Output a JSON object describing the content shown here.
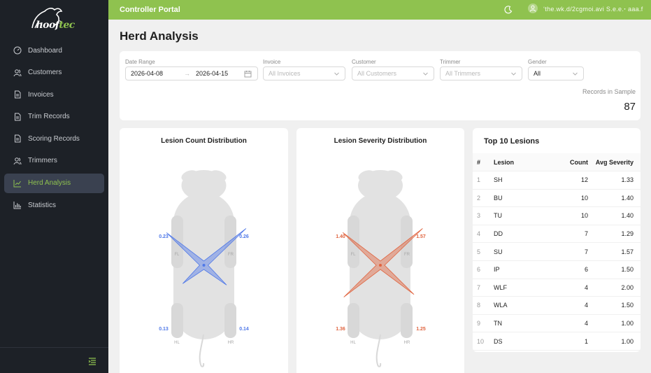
{
  "app": {
    "logo_text_main": "hoof",
    "logo_text_accent": "tec",
    "portal_title": "Controller Portal",
    "user_name": "ʻthe.wk.d/2cgmoi.avi  S.e.e.ꞏ aaa.f",
    "accent_color": "#8fc24f"
  },
  "sidebar": {
    "items": [
      {
        "label": "Dashboard",
        "icon": "dashboard-icon"
      },
      {
        "label": "Customers",
        "icon": "users-icon"
      },
      {
        "label": "Invoices",
        "icon": "file-icon"
      },
      {
        "label": "Trim Records",
        "icon": "file-icon"
      },
      {
        "label": "Scoring Records",
        "icon": "file-icon"
      },
      {
        "label": "Trimmers",
        "icon": "users-icon"
      },
      {
        "label": "Herd Analysis",
        "icon": "line-chart-icon"
      },
      {
        "label": "Statistics",
        "icon": "bar-chart-icon"
      }
    ],
    "active_index": 6
  },
  "page": {
    "title": "Herd Analysis"
  },
  "filters": {
    "date_range_label": "Date Range",
    "date_start": "2026-04-08",
    "date_end": "2026-04-15",
    "date_separator": "→",
    "invoice_label": "Invoice",
    "invoice_placeholder": "All Invoices",
    "customer_label": "Customer",
    "customer_placeholder": "All Customers",
    "trimmer_label": "Trimmer",
    "trimmer_placeholder": "All Trimmers",
    "gender_label": "Gender",
    "gender_value": "All",
    "records_label": "Records in Sample",
    "records_value": "87"
  },
  "count_card": {
    "title": "Lesion Count Distribution",
    "color": "#4f78e8",
    "legs": {
      "FL": "FL",
      "FR": "FR",
      "HL": "HL",
      "HR": "HR"
    },
    "values": {
      "FL": 0.23,
      "FR": 0.26,
      "HL": 0.13,
      "HR": 0.14
    },
    "labels": {
      "FL": "0.23",
      "FR": "0.26",
      "HL": "0.13",
      "HR": "0.14"
    }
  },
  "severity_card": {
    "title": "Lesion Severity Distribution",
    "color": "#e0643f",
    "legs": {
      "FL": "FL",
      "FR": "FR",
      "HL": "HL",
      "HR": "HR"
    },
    "values": {
      "FL": 1.4,
      "FR": 1.57,
      "HL": 1.36,
      "HR": 1.25
    },
    "labels": {
      "FL": "1.40",
      "FR": "1.57",
      "HL": "1.36",
      "HR": "1.25"
    }
  },
  "top10": {
    "title": "Top 10 Lesions",
    "headers": {
      "rank": "#",
      "lesion": "Lesion",
      "count": "Count",
      "severity": "Avg Severity"
    },
    "rows": [
      {
        "rank": "1",
        "lesion": "SH",
        "count": "12",
        "severity": "1.33"
      },
      {
        "rank": "2",
        "lesion": "BU",
        "count": "10",
        "severity": "1.40"
      },
      {
        "rank": "3",
        "lesion": "TU",
        "count": "10",
        "severity": "1.40"
      },
      {
        "rank": "4",
        "lesion": "DD",
        "count": "7",
        "severity": "1.29"
      },
      {
        "rank": "5",
        "lesion": "SU",
        "count": "7",
        "severity": "1.57"
      },
      {
        "rank": "6",
        "lesion": "IP",
        "count": "6",
        "severity": "1.50"
      },
      {
        "rank": "7",
        "lesion": "WLF",
        "count": "4",
        "severity": "2.00"
      },
      {
        "rank": "8",
        "lesion": "WLA",
        "count": "4",
        "severity": "1.50"
      },
      {
        "rank": "9",
        "lesion": "TN",
        "count": "4",
        "severity": "1.00"
      },
      {
        "rank": "10",
        "lesion": "DS",
        "count": "1",
        "severity": "1.00"
      }
    ]
  }
}
